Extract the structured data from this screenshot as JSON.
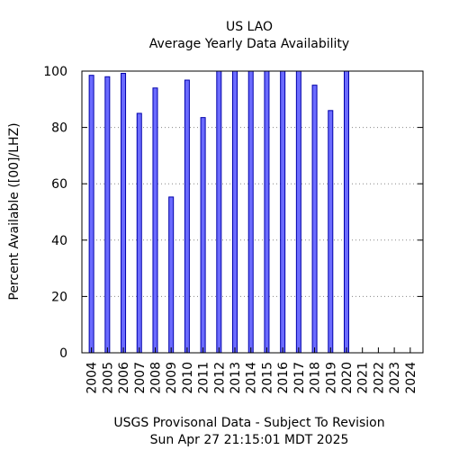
{
  "chart_data": {
    "type": "bar",
    "title": "US LAO",
    "subtitle": "Average Yearly Data Availability",
    "ylabel": "Percent Available ([00]/LHZ)",
    "footer_line1": "USGS Provisonal Data - Subject To Revision",
    "footer_line2": "Sun Apr 27 21:15:01 MDT 2025",
    "categories": [
      "2004",
      "2005",
      "2006",
      "2007",
      "2008",
      "2009",
      "2010",
      "2011",
      "2012",
      "2013",
      "2014",
      "2015",
      "2016",
      "2017",
      "2018",
      "2019",
      "2020",
      "2021",
      "2022",
      "2023",
      "2024"
    ],
    "values": [
      98.5,
      98.0,
      99.2,
      85.0,
      94.0,
      55.3,
      96.8,
      83.5,
      100,
      100,
      100,
      100,
      100,
      100,
      95.0,
      86.0,
      100,
      0,
      0,
      0,
      0
    ],
    "ylim": [
      0,
      100
    ],
    "yticks": [
      0,
      20,
      40,
      60,
      80,
      100
    ],
    "grid": true,
    "bar_fill": "#6b6bff",
    "bar_stroke": "#0000aa",
    "grid_color": "#888888"
  }
}
